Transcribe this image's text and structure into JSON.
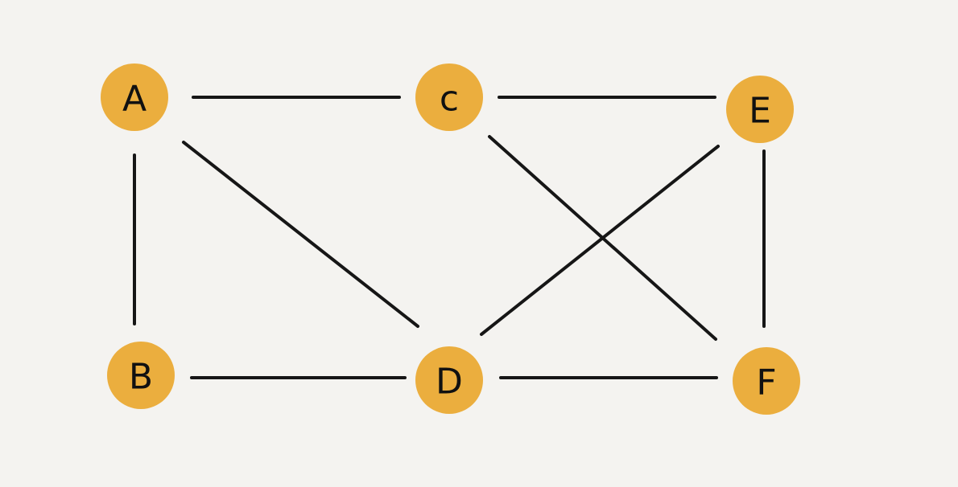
{
  "colors": {
    "background": "#f4f3f0",
    "node_fill": "#ebae3e",
    "edge": "#161616",
    "label": "#111111"
  },
  "nodes": [
    {
      "id": "A",
      "label": "A"
    },
    {
      "id": "C",
      "label": "c"
    },
    {
      "id": "E",
      "label": "E"
    },
    {
      "id": "B",
      "label": "B"
    },
    {
      "id": "D",
      "label": "D"
    },
    {
      "id": "F",
      "label": "F"
    }
  ],
  "edges": [
    {
      "from": "A",
      "to": "C"
    },
    {
      "from": "C",
      "to": "E"
    },
    {
      "from": "A",
      "to": "B"
    },
    {
      "from": "A",
      "to": "D"
    },
    {
      "from": "C",
      "to": "F"
    },
    {
      "from": "E",
      "to": "D"
    },
    {
      "from": "E",
      "to": "F"
    },
    {
      "from": "B",
      "to": "D"
    },
    {
      "from": "D",
      "to": "F"
    }
  ]
}
